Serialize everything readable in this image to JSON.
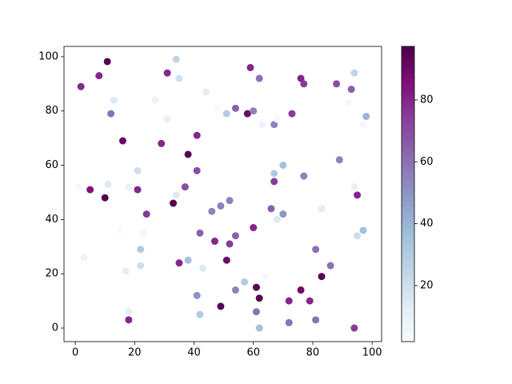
{
  "chart_data": {
    "type": "scatter",
    "x": [
      10.8,
      1.9,
      8,
      34,
      31,
      35,
      44,
      27,
      13,
      12,
      31,
      48,
      51,
      54,
      58,
      60,
      59,
      62,
      63,
      67,
      68,
      73,
      76,
      77,
      88,
      93,
      94,
      92,
      97,
      98,
      16,
      29,
      41,
      38,
      21,
      41,
      1,
      5,
      11,
      10,
      18,
      21,
      34,
      37,
      33,
      24,
      49,
      52,
      46,
      67,
      70,
      67,
      77,
      89,
      94,
      95,
      66,
      70,
      68,
      83,
      15,
      23,
      42,
      47,
      60,
      54,
      52,
      97,
      95,
      22,
      3,
      22,
      35,
      38,
      43,
      51,
      17,
      57,
      64,
      81,
      86,
      83,
      41,
      54,
      61,
      62,
      49,
      72,
      76,
      79,
      18,
      42,
      61,
      18,
      62,
      72,
      81,
      94
    ],
    "values": [
      98.2,
      89,
      93,
      99,
      94,
      92,
      87,
      84,
      84,
      79,
      77,
      81,
      79,
      81,
      79,
      80,
      96,
      92,
      75,
      75,
      77,
      79,
      92,
      90,
      90,
      88,
      94,
      83,
      75,
      78,
      69,
      68,
      71,
      64,
      58,
      58,
      52,
      51,
      53,
      48,
      52,
      51,
      49,
      52,
      46,
      42,
      45,
      47,
      43,
      57,
      60,
      54,
      56,
      62,
      52,
      49,
      44,
      42,
      40,
      44,
      36,
      35,
      35,
      32,
      37,
      34,
      31,
      36,
      34,
      29,
      26,
      23,
      24,
      25,
      22,
      25,
      21,
      17,
      19,
      29,
      23,
      19,
      12,
      14,
      15,
      11,
      8,
      10,
      14,
      10,
      6,
      5,
      6,
      3,
      0,
      2,
      3,
      0
    ],
    "color_values": [
      95,
      80,
      80,
      25,
      80,
      20,
      12,
      8,
      15,
      60,
      10,
      3,
      30,
      65,
      90,
      55,
      80,
      60,
      8,
      55,
      3,
      75,
      80,
      75,
      70,
      65,
      25,
      3,
      5,
      40,
      90,
      80,
      80,
      95,
      20,
      70,
      3,
      85,
      15,
      95,
      8,
      80,
      15,
      70,
      95,
      75,
      55,
      55,
      55,
      30,
      35,
      75,
      55,
      55,
      10,
      80,
      65,
      50,
      15,
      12,
      3,
      5,
      65,
      80,
      80,
      65,
      75,
      35,
      20,
      30,
      8,
      20,
      80,
      35,
      15,
      90,
      12,
      30,
      5,
      60,
      60,
      95,
      50,
      55,
      95,
      95,
      95,
      80,
      90,
      80,
      12,
      30,
      60,
      80,
      35,
      60,
      60,
      75
    ],
    "colormap": "BuPu",
    "xlim": [
      -3.8,
      103.2
    ],
    "ylim": [
      -5,
      103.8
    ],
    "xticks": [
      0,
      20,
      40,
      60,
      80,
      100
    ],
    "yticks": [
      0,
      20,
      40,
      60,
      80,
      100
    ],
    "clim": [
      1.9,
      97.3
    ],
    "cticks": [
      20,
      40,
      60,
      80
    ]
  }
}
